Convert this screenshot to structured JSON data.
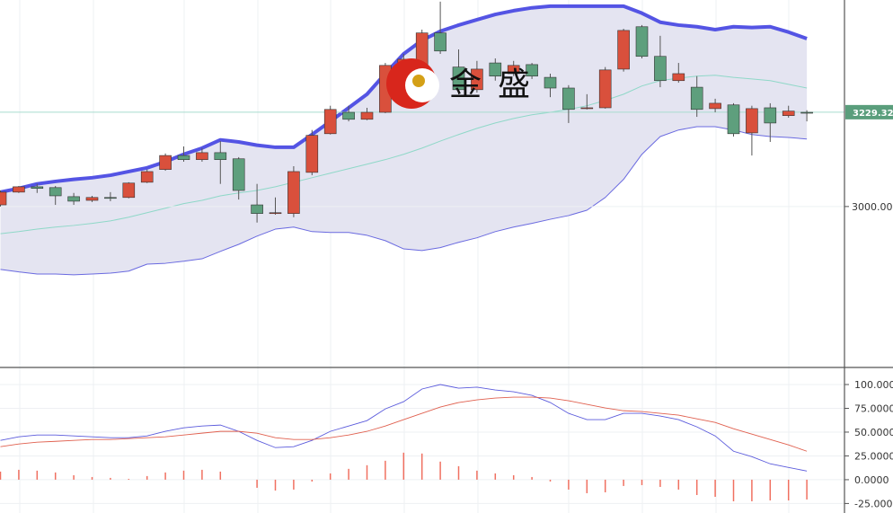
{
  "chart_data": [
    {
      "type": "candlestick",
      "watermark": "金盛",
      "ylim": [
        2611,
        3502
      ],
      "yticks": [
        {
          "value": 3000,
          "label": "3000.000"
        }
      ],
      "last_price": {
        "value": 3229.32,
        "label": "3229.320",
        "color": "#5a9e7c"
      },
      "up_color": "#d9503c",
      "down_color": "#5e9f7d",
      "open": [
        3004,
        3035,
        3048,
        3046,
        3024,
        3015,
        3022,
        3022,
        3059,
        3090,
        3124,
        3114,
        3131,
        3116,
        3004,
        2983,
        2983,
        3083,
        3177,
        3229,
        3212,
        3229,
        3343,
        3332,
        3422,
        3339,
        3284,
        3349,
        3323,
        3345,
        3314,
        3288,
        3238,
        3240,
        3334,
        3437,
        3365,
        3306,
        3290,
        3238,
        3247,
        3179,
        3240,
        3221,
        3229
      ],
      "high": [
        3039,
        3050,
        3055,
        3050,
        3033,
        3026,
        3035,
        3059,
        3090,
        3129,
        3146,
        3142,
        3159,
        3120,
        3055,
        3022,
        3098,
        3186,
        3245,
        3245,
        3240,
        3349,
        3371,
        3430,
        3498,
        3382,
        3354,
        3360,
        3354,
        3349,
        3323,
        3295,
        3273,
        3339,
        3432,
        3441,
        3415,
        3349,
        3317,
        3262,
        3251,
        3245,
        3251,
        3245,
        3234
      ],
      "low": [
        3000,
        3033,
        3033,
        3004,
        3004,
        3011,
        3013,
        3020,
        3057,
        3087,
        3109,
        3109,
        3055,
        3017,
        2961,
        2980,
        2974,
        3076,
        3175,
        3207,
        3210,
        3227,
        3328,
        3328,
        3371,
        3273,
        3277,
        3306,
        3317,
        3310,
        3266,
        3203,
        3236,
        3238,
        3328,
        3360,
        3290,
        3301,
        3218,
        3229,
        3170,
        3124,
        3157,
        3216,
        3207
      ],
      "close": [
        3035,
        3048,
        3044,
        3026,
        3013,
        3022,
        3020,
        3057,
        3085,
        3124,
        3114,
        3131,
        3114,
        3039,
        2983,
        2985,
        3085,
        3173,
        3236,
        3212,
        3229,
        3343,
        3358,
        3422,
        3378,
        3284,
        3334,
        3317,
        3343,
        3317,
        3288,
        3236,
        3240,
        3332,
        3428,
        3365,
        3306,
        3323,
        3236,
        3251,
        3177,
        3238,
        3203,
        3232,
        3227
      ],
      "band_fill": "#e4e4f1",
      "bands": {
        "upper": {
          "color": "#5454e4",
          "values": [
            3035,
            3044,
            3055,
            3061,
            3066,
            3070,
            3076,
            3085,
            3094,
            3109,
            3127,
            3142,
            3162,
            3157,
            3149,
            3144,
            3144,
            3175,
            3207,
            3240,
            3273,
            3323,
            3371,
            3404,
            3426,
            3441,
            3454,
            3467,
            3476,
            3483,
            3487,
            3487,
            3487,
            3487,
            3487,
            3470,
            3448,
            3441,
            3437,
            3430,
            3437,
            3435,
            3437,
            3424,
            3408
          ]
        },
        "middle": {
          "color": "#8fd8c8",
          "values": [
            2934,
            2939,
            2945,
            2950,
            2954,
            2959,
            2965,
            2974,
            2985,
            2996,
            3007,
            3015,
            3026,
            3033,
            3039,
            3048,
            3059,
            3070,
            3081,
            3092,
            3103,
            3114,
            3127,
            3142,
            3159,
            3175,
            3190,
            3203,
            3214,
            3223,
            3229,
            3236,
            3245,
            3258,
            3273,
            3293,
            3306,
            3312,
            3317,
            3319,
            3314,
            3310,
            3306,
            3297,
            3288
          ]
        },
        "lower": {
          "color": "#6a6ae0",
          "values": [
            2847,
            2841,
            2836,
            2836,
            2834,
            2836,
            2838,
            2843,
            2860,
            2862,
            2867,
            2873,
            2891,
            2908,
            2928,
            2945,
            2950,
            2939,
            2937,
            2937,
            2930,
            2917,
            2897,
            2893,
            2900,
            2913,
            2924,
            2939,
            2950,
            2959,
            2969,
            2978,
            2991,
            3022,
            3066,
            3127,
            3170,
            3186,
            3194,
            3194,
            3186,
            3175,
            3170,
            3168,
            3164
          ]
        }
      }
    },
    {
      "type": "line",
      "ylim": [
        -35,
        117
      ],
      "yticks": [
        {
          "value": 100,
          "label": "100.0000"
        },
        {
          "value": 75,
          "label": "75.0000"
        },
        {
          "value": 50,
          "label": "50.0000"
        },
        {
          "value": 25,
          "label": "25.0000"
        },
        {
          "value": 0,
          "label": "0.0000"
        },
        {
          "value": -25,
          "label": "-25.0000"
        }
      ],
      "series": [
        {
          "color": "#5b5bdc",
          "values": [
            41.3,
            45.1,
            47.0,
            47.0,
            46.0,
            45.1,
            44.1,
            44.1,
            46.0,
            50.8,
            54.5,
            56.4,
            57.4,
            50.8,
            41.3,
            33.7,
            34.7,
            41.3,
            50.8,
            56.4,
            62.1,
            74.4,
            82.0,
            95.3,
            100,
            96.2,
            97.2,
            94.3,
            92.4,
            88.6,
            81.1,
            69.7,
            63.1,
            63.1,
            69.7,
            69.7,
            66.9,
            63.1,
            55.5,
            46.0,
            29.9,
            24.2,
            16.7,
            12.9,
            9.1
          ]
        },
        {
          "color": "#e0604f",
          "values": [
            34.7,
            37.5,
            39.4,
            40.3,
            41.3,
            42.2,
            42.2,
            43.2,
            44.1,
            45.1,
            47.0,
            48.9,
            50.8,
            50.8,
            48.9,
            44.1,
            42.2,
            42.2,
            44.1,
            47.0,
            50.8,
            56.4,
            63.1,
            69.7,
            76.3,
            81.1,
            83.9,
            85.8,
            86.7,
            86.7,
            85.8,
            83.0,
            79.2,
            75.4,
            72.5,
            71.6,
            69.7,
            67.8,
            64.0,
            60.2,
            53.6,
            47.9,
            42.2,
            36.6,
            29.9
          ]
        }
      ],
      "histogram": {
        "color": "#f07060",
        "values": [
          8.5,
          10.4,
          9.5,
          7.6,
          4.7,
          2.8,
          1.9,
          0.9,
          3.8,
          7.6,
          9.5,
          10.4,
          8.5,
          0,
          -8.5,
          -11.4,
          -10.4,
          -1.9,
          6.6,
          11.4,
          15.2,
          19.9,
          28.4,
          27.5,
          19.0,
          14.2,
          9.5,
          6.6,
          4.7,
          2.8,
          -1.9,
          -10.4,
          -14.2,
          -13.3,
          -6.6,
          -5.7,
          -7.6,
          -10.4,
          -16.1,
          -18.0,
          -22.7,
          -22.7,
          -21.8,
          -21.8,
          -20.8
        ]
      }
    }
  ]
}
